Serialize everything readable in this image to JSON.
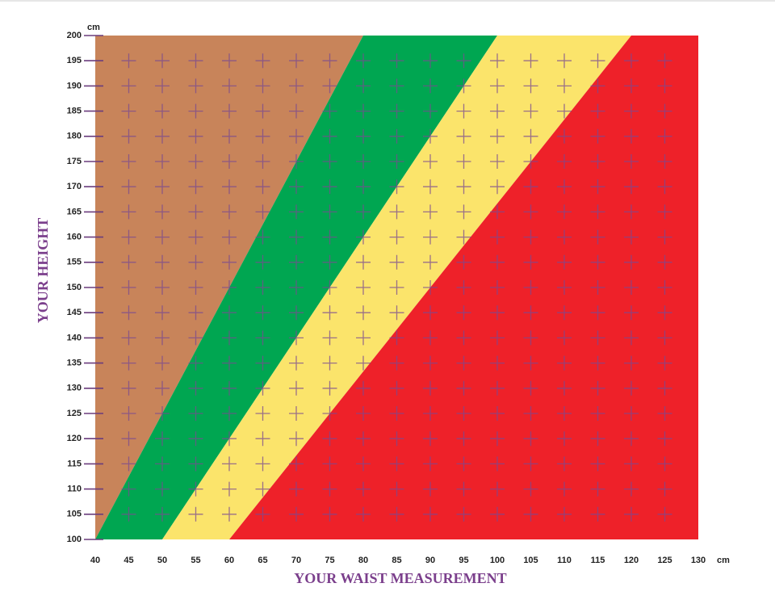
{
  "chart_data": {
    "type": "region",
    "xlabel": "YOUR WAIST MEASUREMENT",
    "ylabel": "YOUR HEIGHT",
    "x_unit": "cm",
    "y_unit": "cm",
    "xlim": [
      40,
      130
    ],
    "ylim": [
      100,
      200
    ],
    "xticks": [
      40,
      45,
      50,
      55,
      60,
      65,
      70,
      75,
      80,
      85,
      90,
      95,
      100,
      105,
      110,
      115,
      120,
      125,
      130
    ],
    "yticks": [
      100,
      105,
      110,
      115,
      120,
      125,
      130,
      135,
      140,
      145,
      150,
      155,
      160,
      165,
      170,
      175,
      180,
      185,
      190,
      195,
      200
    ],
    "grid": "cross",
    "regions": [
      {
        "color": "#c8845a",
        "x": [
          40,
          80,
          40
        ],
        "values": [
          100,
          200,
          200
        ]
      },
      {
        "color": "#00a651",
        "x": [
          40,
          50,
          100,
          80
        ],
        "values": [
          100,
          100,
          200,
          200
        ]
      },
      {
        "color": "#fbe46b",
        "x": [
          50,
          60,
          120,
          100
        ],
        "values": [
          100,
          100,
          200,
          200
        ]
      },
      {
        "color": "#ee2129",
        "x": [
          60,
          130,
          130,
          120
        ],
        "values": [
          100,
          100,
          200,
          200
        ]
      }
    ]
  }
}
